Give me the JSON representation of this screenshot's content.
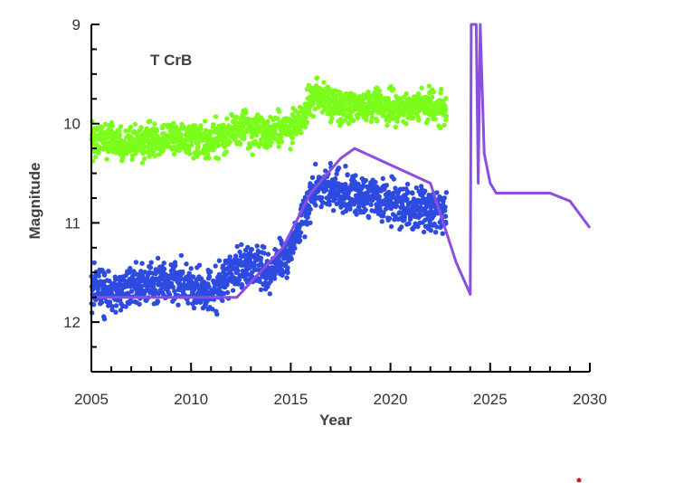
{
  "chart_data": {
    "type": "scatter",
    "title": "",
    "annotation": "T CrB",
    "xlabel": "Year",
    "ylabel": "Magnitude",
    "xlim": [
      2005,
      2030
    ],
    "ylim": [
      9,
      12.5
    ],
    "y_inverted": true,
    "grid": false,
    "x_ticks": [
      "2005",
      "2010",
      "2015",
      "2020",
      "2025",
      "2030"
    ],
    "y_ticks": [
      "9",
      "10",
      "11",
      "12"
    ],
    "colors": {
      "green_points": "#7CFC1A",
      "blue_points": "#2E4BE0",
      "model_line": "#8A4FE0",
      "marker": "#E01010"
    },
    "series": [
      {
        "type": "scatter",
        "color": "#7CFC1A",
        "trend": [
          [
            2005.0,
            10.15
          ],
          [
            2007.0,
            10.2
          ],
          [
            2009.0,
            10.15
          ],
          [
            2011.0,
            10.18
          ],
          [
            2012.5,
            10.05
          ],
          [
            2014.0,
            10.1
          ],
          [
            2015.5,
            9.95
          ],
          [
            2016.3,
            9.7
          ],
          [
            2017.5,
            9.85
          ],
          [
            2019.0,
            9.8
          ],
          [
            2020.5,
            9.85
          ],
          [
            2022.0,
            9.82
          ],
          [
            2022.8,
            9.85
          ]
        ],
        "spread": 0.12,
        "x_range": [
          2005.0,
          2022.8
        ]
      },
      {
        "type": "scatter",
        "color": "#2E4BE0",
        "trend": [
          [
            2005.0,
            11.65
          ],
          [
            2006.5,
            11.7
          ],
          [
            2008.0,
            11.6
          ],
          [
            2009.5,
            11.6
          ],
          [
            2011.0,
            11.7
          ],
          [
            2012.0,
            11.5
          ],
          [
            2013.0,
            11.4
          ],
          [
            2014.0,
            11.5
          ],
          [
            2014.8,
            11.35
          ],
          [
            2015.5,
            11.0
          ],
          [
            2016.2,
            10.65
          ],
          [
            2017.0,
            10.65
          ],
          [
            2018.0,
            10.7
          ],
          [
            2019.0,
            10.75
          ],
          [
            2020.0,
            10.8
          ],
          [
            2021.0,
            10.85
          ],
          [
            2022.0,
            10.9
          ],
          [
            2022.8,
            10.9
          ]
        ],
        "spread": 0.15,
        "x_range": [
          2005.0,
          2022.8
        ]
      },
      {
        "type": "line",
        "color": "#8A4FE0",
        "points": [
          [
            2005.0,
            11.75
          ],
          [
            2012.3,
            11.75
          ],
          [
            2014.6,
            11.25
          ],
          [
            2016.0,
            10.7
          ],
          [
            2017.5,
            10.35
          ],
          [
            2018.2,
            10.25
          ],
          [
            2022.0,
            10.6
          ],
          [
            2023.3,
            11.4
          ],
          [
            2024.0,
            11.72
          ],
          [
            2024.05,
            9.0
          ],
          [
            2024.3,
            9.0
          ],
          [
            2024.4,
            10.6
          ],
          [
            2024.5,
            9.0
          ],
          [
            2024.7,
            10.3
          ],
          [
            2025.0,
            10.6
          ],
          [
            2025.3,
            10.7
          ],
          [
            2028.0,
            10.7
          ],
          [
            2029.0,
            10.78
          ],
          [
            2030.0,
            11.05
          ]
        ]
      }
    ]
  }
}
